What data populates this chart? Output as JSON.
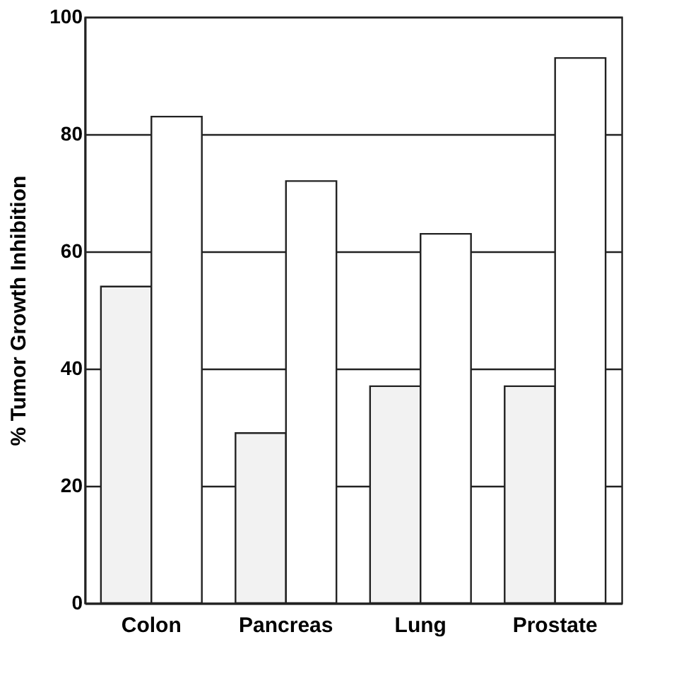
{
  "chart_data": {
    "type": "bar",
    "ylabel": "% Tumor Growth Inhibition",
    "categories": [
      "Colon",
      "Pancreas",
      "Lung",
      "Prostate"
    ],
    "series": [
      {
        "color": "#f2f2f2",
        "values": [
          54,
          29,
          37,
          37
        ]
      },
      {
        "color": "#ffffff",
        "values": [
          83,
          72,
          63,
          93
        ]
      }
    ],
    "ylim": [
      0,
      100
    ],
    "yticks": [
      0,
      20,
      40,
      60,
      80,
      100
    ],
    "grid": "y",
    "legend": false
  }
}
